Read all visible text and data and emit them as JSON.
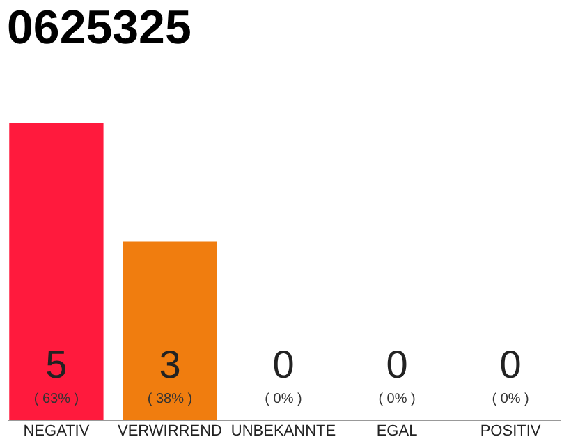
{
  "chart_data": {
    "type": "bar",
    "title": "0625325",
    "categories": [
      "NEGATIV",
      "VERWIRREND",
      "UNBEKANNTE",
      "EGAL",
      "POSITIV"
    ],
    "values": [
      5,
      3,
      0,
      0,
      0
    ],
    "colors": [
      "#ff1a3d",
      "#f07d0f",
      "#f07d0f",
      "#f07d0f",
      "#f07d0f"
    ],
    "value_labels": [
      "5",
      "3",
      "0",
      "0",
      "0"
    ],
    "annotations": [
      "( 63% )",
      "( 38% )",
      "( 0% )",
      "( 0% )",
      "( 0% )"
    ],
    "grid": false
  }
}
